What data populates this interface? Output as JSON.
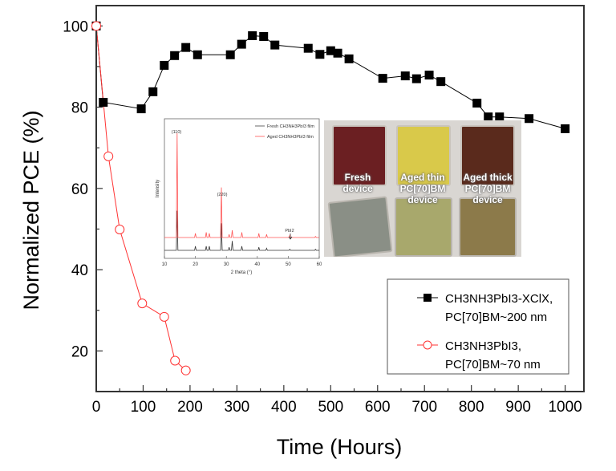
{
  "chart_data": {
    "type": "line",
    "title": "",
    "xlabel": "Time (Hours)",
    "ylabel": "Normalized PCE (%)",
    "xlim": [
      0,
      1040
    ],
    "ylim": [
      10,
      105
    ],
    "xticks": [
      0,
      100,
      200,
      300,
      400,
      500,
      600,
      700,
      800,
      900,
      1000
    ],
    "xtick_labels": [
      "0",
      "100",
      "200",
      "300",
      "400",
      "500",
      "600",
      "700",
      "800",
      "900",
      "1000"
    ],
    "yticks": [
      20,
      40,
      60,
      80,
      100
    ],
    "ytick_labels": [
      "20",
      "40",
      "60",
      "80",
      "100"
    ],
    "grid": false,
    "legend_position": "bottom-right",
    "series": [
      {
        "name": "CH3NH3PbI3-XClX, PC[70]BM~200 nm",
        "legend_line1": "CH3NH3PbI3-XClX,",
        "legend_line2": "PC[70]BM~200 nm",
        "color": "#000000",
        "marker": "filled-square",
        "x": [
          0,
          15,
          96,
          121,
          145,
          167,
          191,
          216,
          286,
          310,
          333,
          357,
          381,
          452,
          477,
          500,
          515,
          539,
          611,
          659,
          683,
          710,
          735,
          812,
          836,
          860,
          923,
          1000
        ],
        "y": [
          100,
          81.2,
          79.6,
          83.8,
          90.3,
          92.7,
          94.7,
          92.9,
          92.9,
          95.5,
          97.6,
          97.4,
          95.3,
          94.5,
          93.0,
          93.9,
          93.3,
          91.9,
          87.1,
          87.7,
          87.0,
          87.9,
          86.3,
          81.0,
          77.6,
          77.6,
          77.2,
          74.7
        ]
      },
      {
        "name": "CH3NH3PbI3, PC[70]BM~70 nm",
        "legend_line1": "CH3NH3PbI3,",
        "legend_line2": "PC[70]BM~70 nm",
        "color": "#ff3333",
        "marker": "open-circle",
        "x": [
          0,
          26,
          50,
          98,
          145,
          168,
          191
        ],
        "y": [
          100,
          67.9,
          49.9,
          31.7,
          28.4,
          17.6,
          15.2
        ]
      }
    ],
    "inset": {
      "type": "line",
      "xlabel": "2 theta (°)",
      "ylabel": "Intensity",
      "xlim": [
        10,
        60
      ],
      "xticks": [
        10,
        20,
        30,
        40,
        50,
        60
      ],
      "xtick_labels": [
        "10",
        "20",
        "30",
        "40",
        "50",
        "60"
      ],
      "annotations": [
        "(110)",
        "(220)",
        "PbI2"
      ],
      "legend": [
        "Fresh CH3NH3PbI3 film",
        "Aged CH3NH3PbI3 film"
      ],
      "colors": [
        "#333333",
        "#ff5555"
      ],
      "peaks": [
        {
          "two_theta": 14.1,
          "fresh": 0.38,
          "aged": 1.0
        },
        {
          "two_theta": 20.0,
          "fresh": 0.04,
          "aged": 0.04
        },
        {
          "two_theta": 23.5,
          "fresh": 0.04,
          "aged": 0.05
        },
        {
          "two_theta": 24.5,
          "fresh": 0.04,
          "aged": 0.04
        },
        {
          "two_theta": 28.4,
          "fresh": 0.26,
          "aged": 0.48
        },
        {
          "two_theta": 30.9,
          "fresh": 0.03,
          "aged": 0.03
        },
        {
          "two_theta": 31.9,
          "fresh": 0.09,
          "aged": 0.07
        },
        {
          "two_theta": 35.0,
          "fresh": 0.04,
          "aged": 0.05
        },
        {
          "two_theta": 40.5,
          "fresh": 0.03,
          "aged": 0.04
        },
        {
          "two_theta": 43.0,
          "fresh": 0.02,
          "aged": 0.03
        },
        {
          "two_theta": 50.5,
          "fresh": 0.01,
          "aged": 0.02
        },
        {
          "two_theta": 58.8,
          "fresh": 0.01,
          "aged": 0.01
        }
      ]
    },
    "photo_labels": [
      {
        "line1": "Fresh",
        "line2": "device",
        "line3": ""
      },
      {
        "line1": "Aged thin",
        "line2": "PC[70]BM",
        "line3": "device"
      },
      {
        "line1": "Aged thick",
        "line2": "PC[70]BM",
        "line3": "device"
      }
    ]
  }
}
